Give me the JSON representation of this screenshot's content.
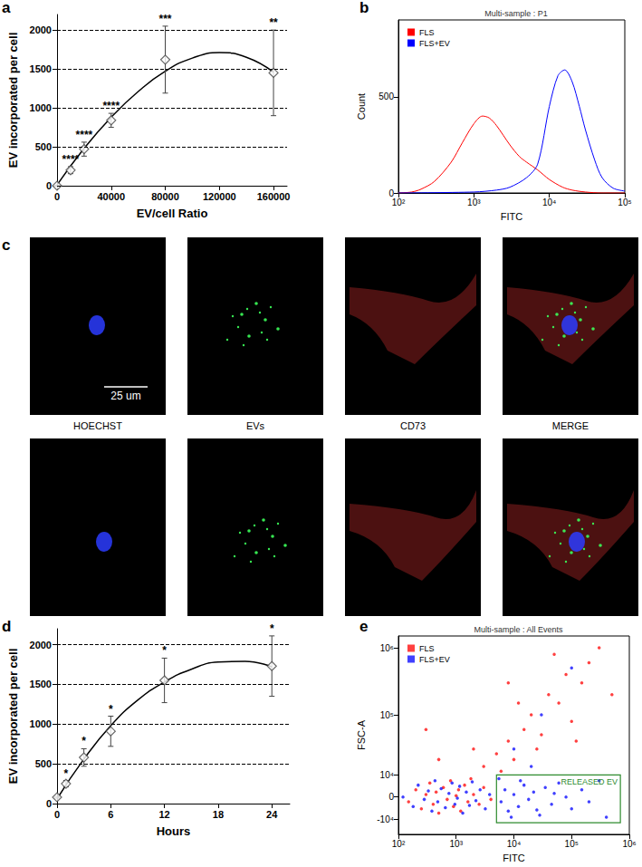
{
  "chart_data": [
    {
      "label": "a",
      "type": "scatter",
      "x_label": "EV/cell Ratio",
      "y_label": "EV incorporated per cell",
      "x": [
        0,
        10000,
        20000,
        40000,
        80000,
        160000
      ],
      "values": [
        0,
        200,
        470,
        840,
        1620,
        1450
      ],
      "errors": [
        0,
        45,
        90,
        90,
        430,
        550
      ],
      "annotations": [
        null,
        "****",
        "****",
        "****",
        "***",
        "**"
      ],
      "fit": {
        "x": [
          0,
          20000,
          40000,
          60000,
          80000,
          100000,
          120000,
          140000,
          160000
        ],
        "values": [
          10,
          480,
          880,
          1210,
          1470,
          1640,
          1710,
          1650,
          1460
        ]
      },
      "xlim": [
        0,
        170000
      ],
      "xticks": [
        0,
        40000,
        80000,
        120000,
        160000
      ],
      "ylim": [
        0,
        2200
      ],
      "yticks": [
        0,
        500,
        1000,
        1500,
        2000
      ],
      "grid": true,
      "marker": "diamond",
      "color": "#444444"
    },
    {
      "label": "b",
      "type": "line",
      "title": "Multi-sample : P1",
      "x_label": "FITC",
      "y_label": "Count",
      "log": "x",
      "xlim": [
        100,
        100000
      ],
      "xticks": [
        {
          "value": 100,
          "label": "10²"
        },
        {
          "value": 1000,
          "label": "10³"
        },
        {
          "value": 10000,
          "label": "10⁴"
        },
        {
          "value": 100000,
          "label": "10⁵"
        }
      ],
      "ylim": [
        0,
        900
      ],
      "yticks": [
        0,
        500
      ],
      "legend": "top-left",
      "series": [
        {
          "name": "FLS",
          "color": "#ff0000",
          "x": [
            100,
            150,
            200,
            300,
            500,
            700,
            1000,
            1300,
            1600,
            2000,
            3000,
            4000,
            5000,
            7000,
            10000,
            15000,
            20000,
            30000,
            50000,
            100000
          ],
          "values": [
            0,
            5,
            20,
            60,
            160,
            260,
            360,
            400,
            390,
            350,
            250,
            190,
            160,
            120,
            70,
            30,
            15,
            5,
            0,
            0
          ]
        },
        {
          "name": "FLS+EV",
          "color": "#0000ff",
          "x": [
            100,
            1000,
            2000,
            3000,
            5000,
            7000,
            10000,
            13000,
            16000,
            20000,
            25000,
            30000,
            40000,
            50000,
            70000,
            100000
          ],
          "values": [
            0,
            5,
            15,
            30,
            80,
            150,
            450,
            610,
            640,
            580,
            450,
            330,
            170,
            80,
            25,
            10
          ]
        }
      ]
    },
    {
      "label": "d",
      "type": "scatter",
      "x_label": "Hours",
      "y_label": "EV incorporated per cell",
      "x": [
        0,
        1,
        3,
        6,
        12,
        24
      ],
      "values": [
        80,
        250,
        580,
        910,
        1550,
        1730
      ],
      "errors": [
        10,
        40,
        110,
        190,
        280,
        380
      ],
      "annotations": [
        null,
        "*",
        "*",
        "*",
        "*",
        "*"
      ],
      "fit": {
        "x": [
          0,
          3,
          6,
          9,
          12,
          15,
          18,
          21,
          24
        ],
        "values": [
          60,
          560,
          980,
          1300,
          1530,
          1690,
          1780,
          1790,
          1720
        ]
      },
      "xlim": [
        0,
        26
      ],
      "xticks": [
        0,
        6,
        12,
        18,
        24
      ],
      "ylim": [
        0,
        2200
      ],
      "yticks": [
        0,
        500,
        1000,
        1500,
        2000
      ],
      "grid": true,
      "marker": "diamond",
      "color": "#444444"
    },
    {
      "label": "e",
      "type": "scatter",
      "title": "Multi-sample : All Events",
      "x_label": "FITC",
      "y_label": "FSC-A",
      "log": true,
      "xlim": [
        100,
        1000000
      ],
      "xticks": [
        {
          "value": 100,
          "label": "10²"
        },
        {
          "value": 1000,
          "label": "10³"
        },
        {
          "value": 10000,
          "label": "10⁴"
        },
        {
          "value": 100000,
          "label": "10⁵"
        },
        {
          "value": 1000000,
          "label": "10⁶"
        }
      ],
      "ylim": [
        -20000,
        1500000
      ],
      "yticks": [
        {
          "value": -10000,
          "label": "-10⁴"
        },
        0,
        {
          "value": 10000,
          "label": "10⁴"
        },
        {
          "value": 100000,
          "label": "10⁵"
        },
        {
          "value": 1000000,
          "label": "10⁶"
        }
      ],
      "legend": "top-left",
      "gate": {
        "label": "RELEASED EV",
        "color": "#2e8b2e",
        "xlim": [
          5000,
          700000
        ],
        "ylim": [
          -12000,
          10000
        ]
      },
      "series": [
        {
          "name": "FLS",
          "color": "#ff0000",
          "x": [
            150,
            200,
            250,
            300,
            350,
            400,
            450,
            500,
            600,
            700,
            800,
            900,
            1000,
            1100,
            1200,
            1400,
            1600,
            1800,
            2000,
            2500,
            3000,
            4000,
            500,
            300,
            3000,
            5000,
            8000,
            10000,
            15000,
            20000,
            30000,
            40000,
            60000,
            80000,
            100000,
            150000,
            200000,
            300000,
            500000,
            2000,
            6000,
            12000,
            25000,
            50000,
            120000,
            8000
          ],
          "values": [
            -2000,
            3000,
            -5000,
            1000,
            6000,
            -3000,
            2000,
            -7000,
            4000,
            -1000,
            7000,
            -4000,
            500,
            3000,
            -6000,
            5000,
            -2000,
            8000,
            1000,
            -3000,
            4000,
            -1000,
            20000,
            60000,
            15000,
            25000,
            40000,
            20000,
            60000,
            100000,
            50000,
            200000,
            150000,
            400000,
            80000,
            300000,
            600000,
            1000000,
            200000,
            30000,
            12000,
            150000,
            30000,
            800000,
            40000,
            300000
          ]
        },
        {
          "name": "FLS+EV",
          "color": "#0000ff",
          "x": [
            120,
            180,
            220,
            280,
            330,
            380,
            430,
            480,
            550,
            650,
            750,
            850,
            950,
            1050,
            1150,
            1300,
            1500,
            1700,
            1900,
            2200,
            2600,
            3200,
            3800,
            6000,
            7000,
            8000,
            10000,
            12000,
            15000,
            18000,
            22000,
            28000,
            35000,
            45000,
            60000,
            80000,
            100000,
            150000,
            200000,
            300000,
            400000,
            5500,
            9000,
            13000,
            25000,
            50000,
            10000,
            30000,
            100000,
            20000
          ],
          "values": [
            0,
            -4000,
            5000,
            -1000,
            2500,
            -6000,
            7000,
            -2000,
            3500,
            -4500,
            1500,
            6000,
            -3000,
            -500,
            4500,
            -7000,
            2000,
            -3500,
            6500,
            -1500,
            3000,
            -5000,
            1000,
            -2000,
            3000,
            -6000,
            1000,
            -4000,
            5000,
            -1000,
            2000,
            -8000,
            4000,
            -3000,
            6000,
            0,
            -5000,
            3000,
            -2000,
            7000,
            -9000,
            8000,
            -9000,
            7000,
            -5500,
            1500,
            30000,
            100000,
            500000,
            15000
          ]
        }
      ]
    }
  ],
  "images": {
    "label": "c",
    "channels": [
      "HOECHST",
      "EVs",
      "CD73",
      "MERGE"
    ],
    "scale_bar": "25 um"
  }
}
